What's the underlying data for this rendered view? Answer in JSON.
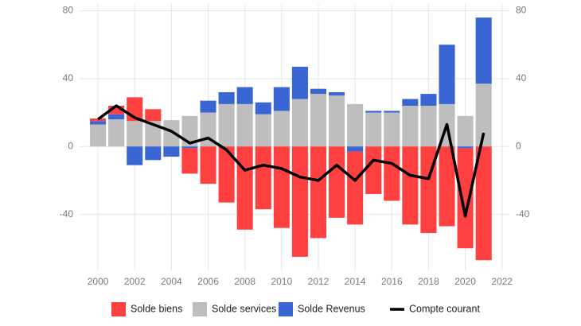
{
  "chart_data": {
    "type": "bar-line",
    "x": [
      2000,
      2001,
      2002,
      2003,
      2004,
      2005,
      2006,
      2007,
      2008,
      2009,
      2010,
      2011,
      2012,
      2013,
      2014,
      2015,
      2016,
      2017,
      2018,
      2019,
      2020,
      2021
    ],
    "series": [
      {
        "name": "Solde biens",
        "color": "#ff4040",
        "type": "bar",
        "values": [
          1.5,
          5,
          14,
          7,
          0,
          -15,
          -22,
          -33,
          -49,
          -37,
          -48,
          -65,
          -54,
          -42,
          -43,
          -28,
          -32,
          -46,
          -51,
          -47,
          -59,
          -67
        ]
      },
      {
        "name": "Solde services",
        "color": "#bebebe",
        "type": "bar",
        "values": [
          13,
          16,
          15,
          15,
          15.5,
          18,
          20,
          25,
          25,
          19,
          21,
          28,
          31,
          30,
          25,
          20,
          20,
          24,
          24,
          25,
          18,
          37
        ]
      },
      {
        "name": "Solde Revenus",
        "color": "#3a66d4",
        "type": "bar",
        "values": [
          2,
          3,
          -11,
          -8,
          -6,
          -1,
          7,
          7,
          10,
          7,
          14,
          19,
          3,
          2,
          -3,
          1,
          1,
          4,
          7,
          35,
          -1,
          39
        ]
      },
      {
        "name": "Compte courant",
        "color": "#000000",
        "type": "line",
        "values": [
          16,
          24,
          17,
          13,
          9,
          2,
          5,
          -2,
          -14,
          -11,
          -13,
          -18,
          -20,
          -11,
          -20,
          -8,
          -10,
          -17,
          -19,
          13,
          -41,
          8
        ]
      }
    ],
    "xlim": [
      1999,
      2022.4
    ],
    "xticks": [
      2000,
      2002,
      2004,
      2006,
      2008,
      2010,
      2012,
      2014,
      2016,
      2018,
      2020,
      2022
    ],
    "ylim": [
      -73,
      84
    ],
    "yticks": [
      -40,
      0,
      40,
      80
    ],
    "grid": true,
    "legend": "bottom"
  }
}
